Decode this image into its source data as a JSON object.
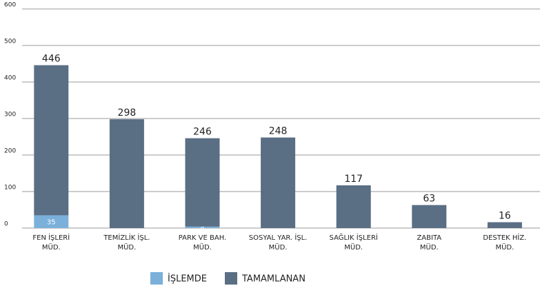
{
  "chart_data": {
    "type": "stacked_bar",
    "categories": [
      [
        "FEN İŞLERİ",
        "MÜD."
      ],
      [
        "TEMİZLİK İŞL.",
        "MÜD."
      ],
      [
        "PARK VE BAH.",
        "MÜD."
      ],
      [
        "SOSYAL YAR. İŞL.",
        "MÜD."
      ],
      [
        "SAĞLIK İŞLERİ",
        "MÜD."
      ],
      [
        "ZABITA",
        "MÜD."
      ],
      [
        "DESTEK HİZ.",
        "MÜD."
      ]
    ],
    "series": [
      {
        "name": "İŞLEMDE",
        "color": "#7ab0da",
        "values": [
          35,
          null,
          4,
          null,
          null,
          null,
          null
        ]
      },
      {
        "name": "TAMAMLANAN",
        "color": "#5a6e84",
        "values": [
          411,
          298,
          242,
          248,
          117,
          63,
          16
        ]
      }
    ],
    "totals": [
      446,
      298,
      246,
      248,
      117,
      63,
      16
    ],
    "ylim": [
      0,
      600
    ],
    "yticks": [
      0,
      100,
      200,
      300,
      400,
      500,
      600
    ],
    "grid": true,
    "legend": "bottom"
  }
}
